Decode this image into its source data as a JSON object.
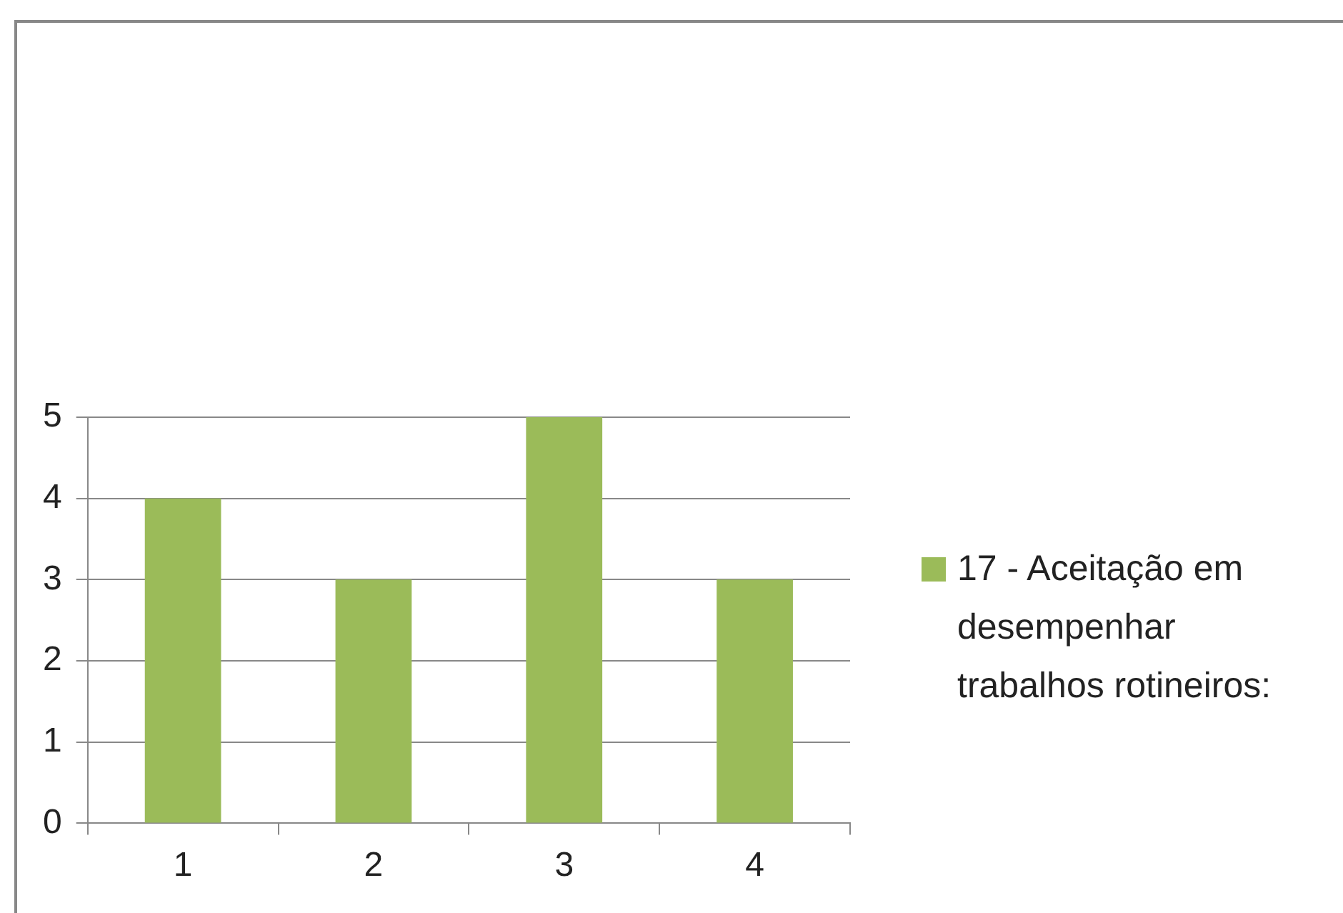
{
  "chart_data": {
    "type": "bar",
    "categories": [
      "1",
      "2",
      "3",
      "4"
    ],
    "series": [
      {
        "name": "17 - Aceitação em desempenhar trabalhos rotineiros:",
        "color": "#9bbb59",
        "values": [
          4,
          3,
          5,
          3
        ]
      }
    ],
    "ylim": [
      0,
      5
    ],
    "yticks": [
      0,
      1,
      2,
      3,
      4,
      5
    ],
    "grid": "y",
    "legend": "right"
  }
}
